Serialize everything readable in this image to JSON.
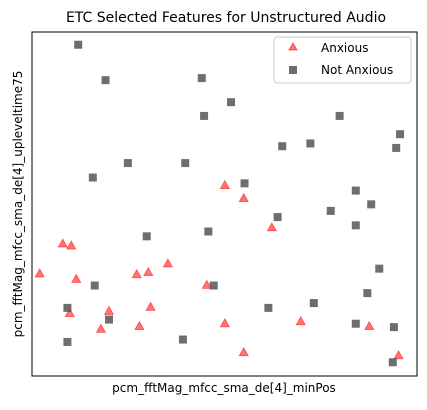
{
  "chart_data": {
    "type": "scatter",
    "title": "ETC Selected Features for Unstructured Audio",
    "xlabel": "pcm_fftMag_mfcc_sma_de[4]_minPos",
    "ylabel": "pcm_fftMag_mfcc_sma_de[4]_upleveltime75",
    "xlim": [
      0,
      100
    ],
    "ylim": [
      0,
      100
    ],
    "xticks_visible": false,
    "yticks_visible": false,
    "grid": false,
    "legend_position": "top-right",
    "series": [
      {
        "name": "Anxious",
        "marker": "triangle",
        "color": "#ff0000",
        "alpha": 0.55,
        "points": [
          {
            "x": 50.1,
            "y": 55.5
          },
          {
            "x": 55.0,
            "y": 51.7
          },
          {
            "x": 62.3,
            "y": 43.2
          },
          {
            "x": 8.0,
            "y": 38.5
          },
          {
            "x": 10.2,
            "y": 37.9
          },
          {
            "x": 35.3,
            "y": 32.7
          },
          {
            "x": 2.0,
            "y": 29.8
          },
          {
            "x": 11.5,
            "y": 28.2
          },
          {
            "x": 27.2,
            "y": 29.6
          },
          {
            "x": 30.2,
            "y": 30.2
          },
          {
            "x": 45.4,
            "y": 26.5
          },
          {
            "x": 30.8,
            "y": 20.1
          },
          {
            "x": 9.8,
            "y": 18.3
          },
          {
            "x": 20.0,
            "y": 18.9
          },
          {
            "x": 17.9,
            "y": 13.7
          },
          {
            "x": 27.9,
            "y": 14.5
          },
          {
            "x": 50.1,
            "y": 15.3
          },
          {
            "x": 69.8,
            "y": 15.9
          },
          {
            "x": 87.6,
            "y": 14.5
          },
          {
            "x": 55.0,
            "y": 6.9
          },
          {
            "x": 95.2,
            "y": 6.0
          }
        ]
      },
      {
        "name": "Not Anxious",
        "marker": "square",
        "color": "#555555",
        "alpha": 0.85,
        "points": [
          {
            "x": 12.0,
            "y": 96.3
          },
          {
            "x": 19.1,
            "y": 86.0
          },
          {
            "x": 44.1,
            "y": 86.6
          },
          {
            "x": 51.7,
            "y": 79.6
          },
          {
            "x": 44.7,
            "y": 75.6
          },
          {
            "x": 79.9,
            "y": 75.6
          },
          {
            "x": 95.6,
            "y": 70.3
          },
          {
            "x": 72.3,
            "y": 67.6
          },
          {
            "x": 65.0,
            "y": 66.8
          },
          {
            "x": 94.6,
            "y": 66.3
          },
          {
            "x": 24.9,
            "y": 61.9
          },
          {
            "x": 39.8,
            "y": 61.9
          },
          {
            "x": 15.8,
            "y": 57.7
          },
          {
            "x": 55.2,
            "y": 56.0
          },
          {
            "x": 84.1,
            "y": 53.9
          },
          {
            "x": 88.1,
            "y": 49.9
          },
          {
            "x": 77.6,
            "y": 48.0
          },
          {
            "x": 63.8,
            "y": 46.2
          },
          {
            "x": 84.1,
            "y": 43.8
          },
          {
            "x": 45.8,
            "y": 42.0
          },
          {
            "x": 29.8,
            "y": 40.6
          },
          {
            "x": 90.2,
            "y": 31.2
          },
          {
            "x": 16.3,
            "y": 26.3
          },
          {
            "x": 47.2,
            "y": 26.3
          },
          {
            "x": 87.1,
            "y": 24.1
          },
          {
            "x": 73.2,
            "y": 21.2
          },
          {
            "x": 9.2,
            "y": 19.8
          },
          {
            "x": 61.4,
            "y": 19.8
          },
          {
            "x": 20.0,
            "y": 16.4
          },
          {
            "x": 84.1,
            "y": 15.2
          },
          {
            "x": 94.0,
            "y": 14.2
          },
          {
            "x": 39.2,
            "y": 10.6
          },
          {
            "x": 9.2,
            "y": 9.9
          },
          {
            "x": 93.7,
            "y": 4.0
          }
        ]
      }
    ]
  }
}
